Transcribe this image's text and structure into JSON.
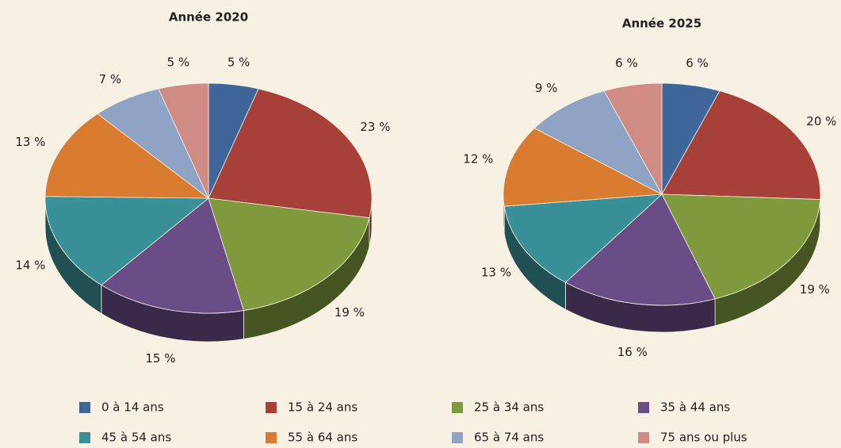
{
  "chart_data": [
    {
      "type": "pie",
      "title": "Année 2020",
      "categories": [
        "0 à 14 ans",
        "15 à 24 ans",
        "25 à 34 ans",
        "35 à 44 ans",
        "45 à 54 ans",
        "55 à 64 ans",
        "65 à 74 ans",
        "75 ans ou plus"
      ],
      "colors": [
        "#3e6699",
        "#a8403a",
        "#7f9a3c",
        "#6a4c86",
        "#3a9099",
        "#d97c2f",
        "#8fa3c4",
        "#d08b84"
      ],
      "values": [
        5,
        23,
        19,
        15,
        14,
        13,
        7,
        5
      ],
      "value_labels": [
        "5 %",
        "23 %",
        "19 %",
        "15 %",
        "14 %",
        "13 %",
        "7 %",
        "5 %"
      ]
    },
    {
      "type": "pie",
      "title": "Année 2025",
      "colors": [
        "#3e6699",
        "#a8403a",
        "#7f9a3c",
        "#6a4c86",
        "#3a9099",
        "#d97c2f",
        "#8fa3c4",
        "#d08b84"
      ],
      "values": [
        6,
        20,
        19,
        16,
        13,
        12,
        9,
        6
      ],
      "value_labels": [
        "6 %",
        "20 %",
        "19 %",
        "16 %",
        "13 %",
        "12 %",
        "9 %",
        "6 %"
      ]
    }
  ]
}
